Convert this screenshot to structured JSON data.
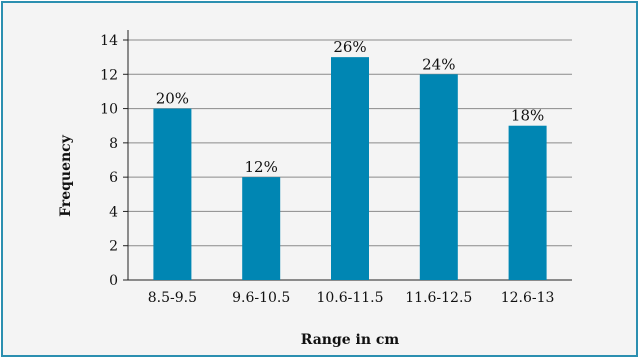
{
  "chart_data": {
    "type": "bar",
    "title": "",
    "xlabel": "Range in cm",
    "ylabel": "Frequency",
    "categories": [
      "8.5-9.5",
      "9.6-10.5",
      "10.6-11.5",
      "11.6-12.5",
      "12.6-13"
    ],
    "values": [
      10,
      6,
      13,
      12,
      9
    ],
    "data_labels": [
      "20%",
      "12%",
      "26%",
      "24%",
      "18%"
    ],
    "ylim": [
      0,
      14
    ],
    "yticks": [
      "0",
      "2",
      "4",
      "6",
      "8",
      "10",
      "12",
      "14"
    ],
    "grid": true,
    "bar_color": "#0086b3",
    "frame_color": "#2b8fb0",
    "background_color": "#f4f4f4"
  }
}
